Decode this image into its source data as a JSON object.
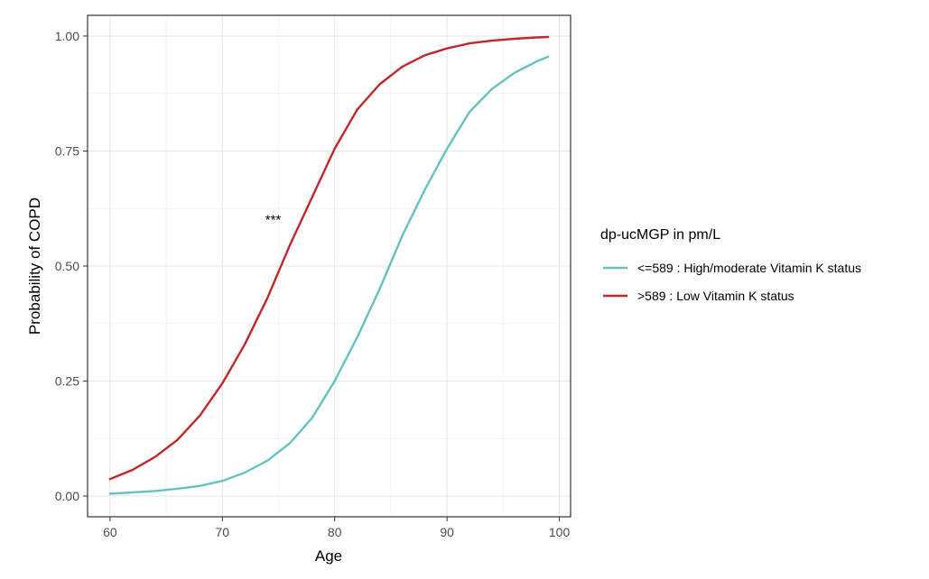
{
  "chart_data": {
    "type": "line",
    "title": "",
    "xlabel": "Age",
    "ylabel": "Probability of COPD",
    "xlim": [
      58,
      101
    ],
    "ylim": [
      -0.045,
      1.045
    ],
    "x_ticks": [
      60,
      70,
      80,
      90,
      100
    ],
    "y_ticks": [
      0.0,
      0.25,
      0.5,
      0.75,
      1.0
    ],
    "x_tick_labels": [
      "60",
      "70",
      "80",
      "90",
      "100"
    ],
    "y_tick_labels": [
      "0.00",
      "0.25",
      "0.50",
      "0.75",
      "1.00"
    ],
    "grid": true,
    "legend": {
      "title": "dp-ucMGP in pm/L",
      "placement": "right"
    },
    "series": [
      {
        "name": "<=589 : High/moderate Vitamin K status",
        "color": "#66c2c2",
        "x": [
          60,
          62,
          64,
          66,
          68,
          70,
          72,
          74,
          76,
          78,
          80,
          82,
          84,
          86,
          88,
          90,
          92,
          94,
          96,
          98,
          99
        ],
        "y": [
          0.005,
          0.008,
          0.011,
          0.016,
          0.022,
          0.033,
          0.051,
          0.077,
          0.115,
          0.17,
          0.25,
          0.345,
          0.45,
          0.565,
          0.665,
          0.755,
          0.835,
          0.885,
          0.92,
          0.945,
          0.955
        ]
      },
      {
        "name": ">589 : Low Vitamin K status",
        "color": "#c1272d",
        "x": [
          60,
          62,
          64,
          66,
          68,
          70,
          72,
          74,
          76,
          78,
          80,
          82,
          84,
          86,
          88,
          90,
          92,
          94,
          96,
          98,
          99
        ],
        "y": [
          0.037,
          0.057,
          0.085,
          0.122,
          0.175,
          0.245,
          0.33,
          0.43,
          0.545,
          0.65,
          0.755,
          0.84,
          0.895,
          0.933,
          0.958,
          0.973,
          0.984,
          0.99,
          0.994,
          0.997,
          0.998
        ]
      }
    ],
    "annotations": [
      {
        "text": "***",
        "x": 75,
        "y": 0.605
      }
    ]
  }
}
